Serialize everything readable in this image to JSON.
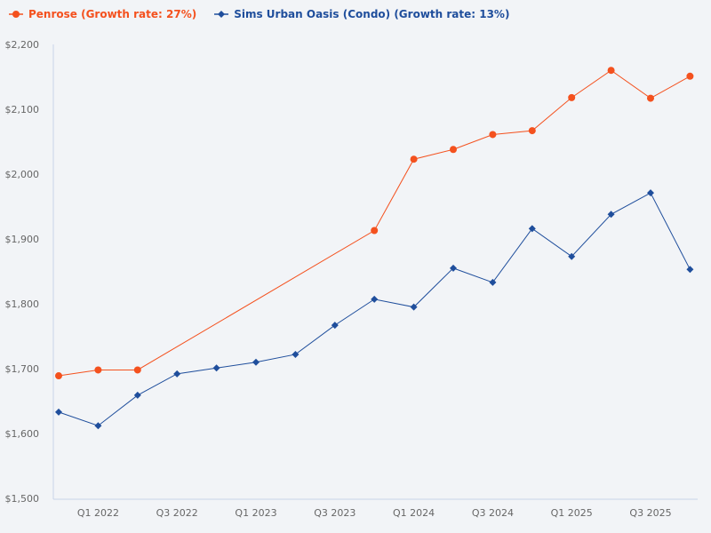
{
  "chart_data": {
    "type": "line",
    "title": "",
    "xlabel": "",
    "ylabel": "",
    "categories": [
      "Q4 2021",
      "Q1 2022",
      "Q2 2022",
      "Q3 2022",
      "Q4 2022",
      "Q1 2023",
      "Q2 2023",
      "Q3 2023",
      "Q4 2023",
      "Q1 2024",
      "Q2 2024",
      "Q3 2024",
      "Q4 2024",
      "Q1 2025",
      "Q2 2025",
      "Q3 2025",
      "Q4 2025"
    ],
    "x_tick_labels": [
      "Q1 2022",
      "Q3 2022",
      "Q1 2023",
      "Q3 2023",
      "Q1 2024",
      "Q3 2024",
      "Q1 2025",
      "Q3 2025"
    ],
    "ylim": [
      1500,
      2200
    ],
    "y_ticks": [
      1500,
      1600,
      1700,
      1800,
      1900,
      2000,
      2100,
      2200
    ],
    "y_tick_labels": [
      "$1,500",
      "$1,600",
      "$1,700",
      "$1,800",
      "$1,900",
      "$2,000",
      "$2,100",
      "$2,200"
    ],
    "grid": false,
    "legend_placement": "top-left",
    "series": [
      {
        "name": "Penrose (Growth rate: 27%)",
        "color": "#f4511e",
        "marker": "circle",
        "values": [
          1689,
          1698,
          1698,
          null,
          null,
          null,
          null,
          null,
          1913,
          2023,
          2038,
          2061,
          2067,
          2118,
          2160,
          2117,
          2151
        ]
      },
      {
        "name": "Sims Urban Oasis (Condo) (Growth rate: 13%)",
        "color": "#1f4e9c",
        "marker": "diamond",
        "values": [
          1633,
          1612,
          1659,
          1692,
          1701,
          1710,
          1722,
          1767,
          1807,
          1795,
          1855,
          1833,
          1916,
          1873,
          1938,
          1971,
          1853
        ]
      }
    ]
  }
}
